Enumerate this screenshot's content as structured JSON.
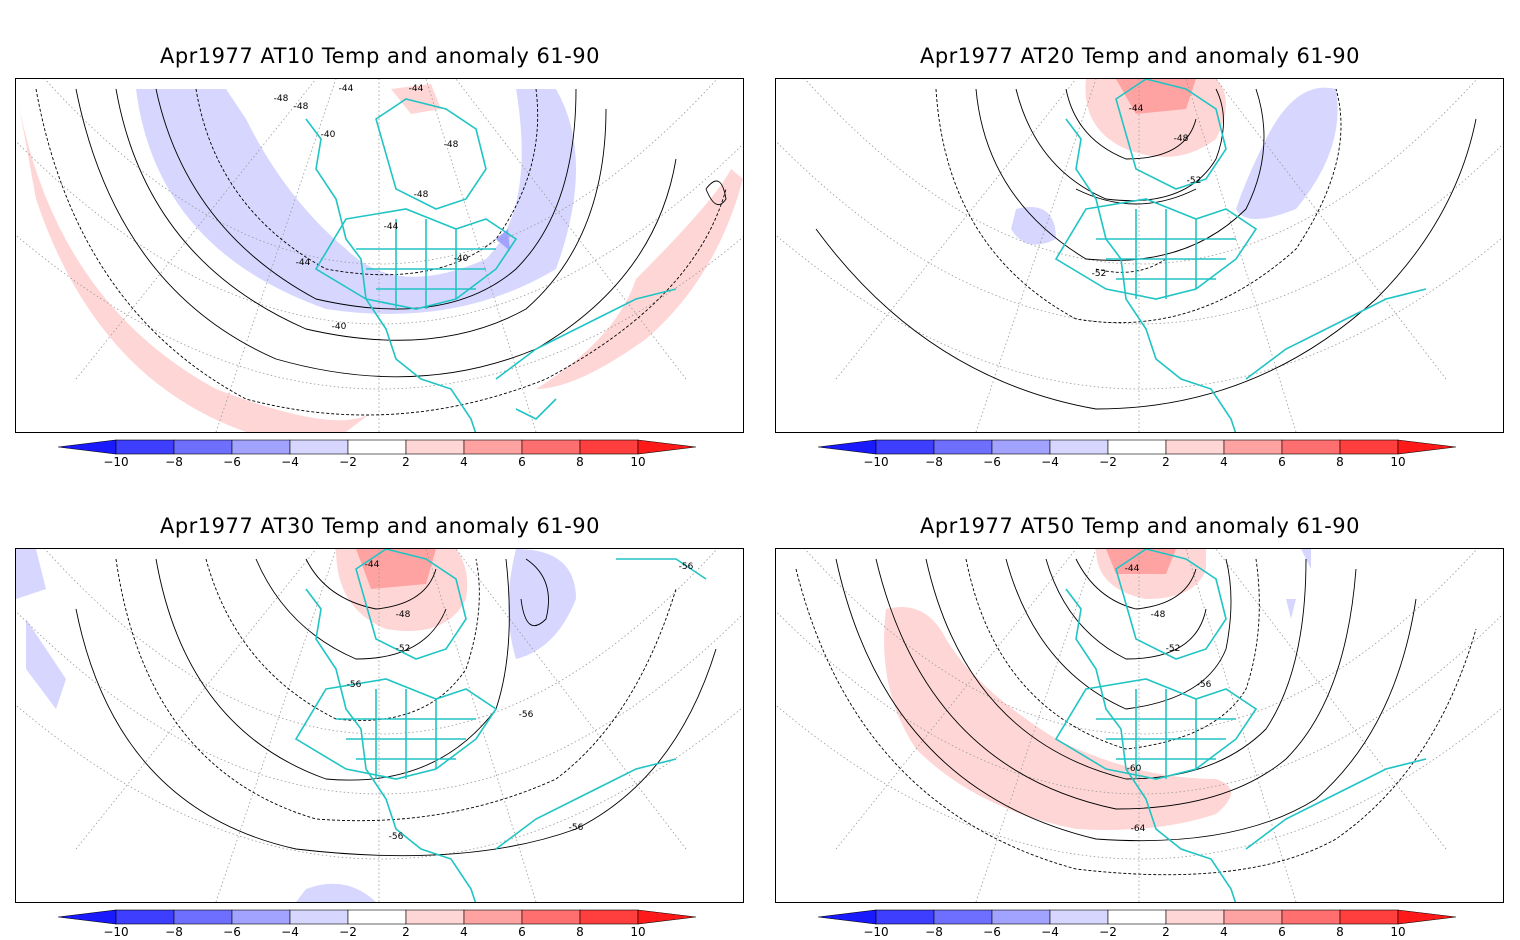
{
  "panels": [
    {
      "id": "p1",
      "title": "Apr1977 AT10 Temp and anomaly 61-90",
      "contour_labels": [
        "-48",
        "-44",
        "-48",
        "-40",
        "-44",
        "-48",
        "-48",
        "-44",
        "-44",
        "-40",
        "-40"
      ]
    },
    {
      "id": "p2",
      "title": "Apr1977 AT20 Temp and anomaly 61-90",
      "contour_labels": [
        "-44",
        "-48",
        "-52",
        "-52"
      ]
    },
    {
      "id": "p3",
      "title": "Apr1977 AT30 Temp and anomaly 61-90",
      "contour_labels": [
        "-44",
        "-48",
        "-52",
        "-56",
        "-56",
        "-56",
        "-56",
        "-56"
      ]
    },
    {
      "id": "p4",
      "title": "Apr1977 AT50 Temp and anomaly 61-90",
      "contour_labels": [
        "-44",
        "-48",
        "-52",
        "-56",
        "-60",
        "-64"
      ]
    }
  ],
  "colorbar": {
    "ticks": [
      "-10",
      "-8",
      "-6",
      "-4",
      "-2",
      "2",
      "4",
      "6",
      "8",
      "10"
    ],
    "colors": [
      "#1a1aff",
      "#3e3eff",
      "#6f6fff",
      "#a2a2ff",
      "#d6d6ff",
      "#ffffff",
      "#ffd6d6",
      "#ffa2a2",
      "#ff6f6f",
      "#ff3e3e",
      "#ff1a1a"
    ]
  },
  "style": {
    "coast_color": "#20c4c4",
    "positive_anomaly_color": "#ffd6d6",
    "negative_anomaly_color": "#d6d6ff"
  }
}
